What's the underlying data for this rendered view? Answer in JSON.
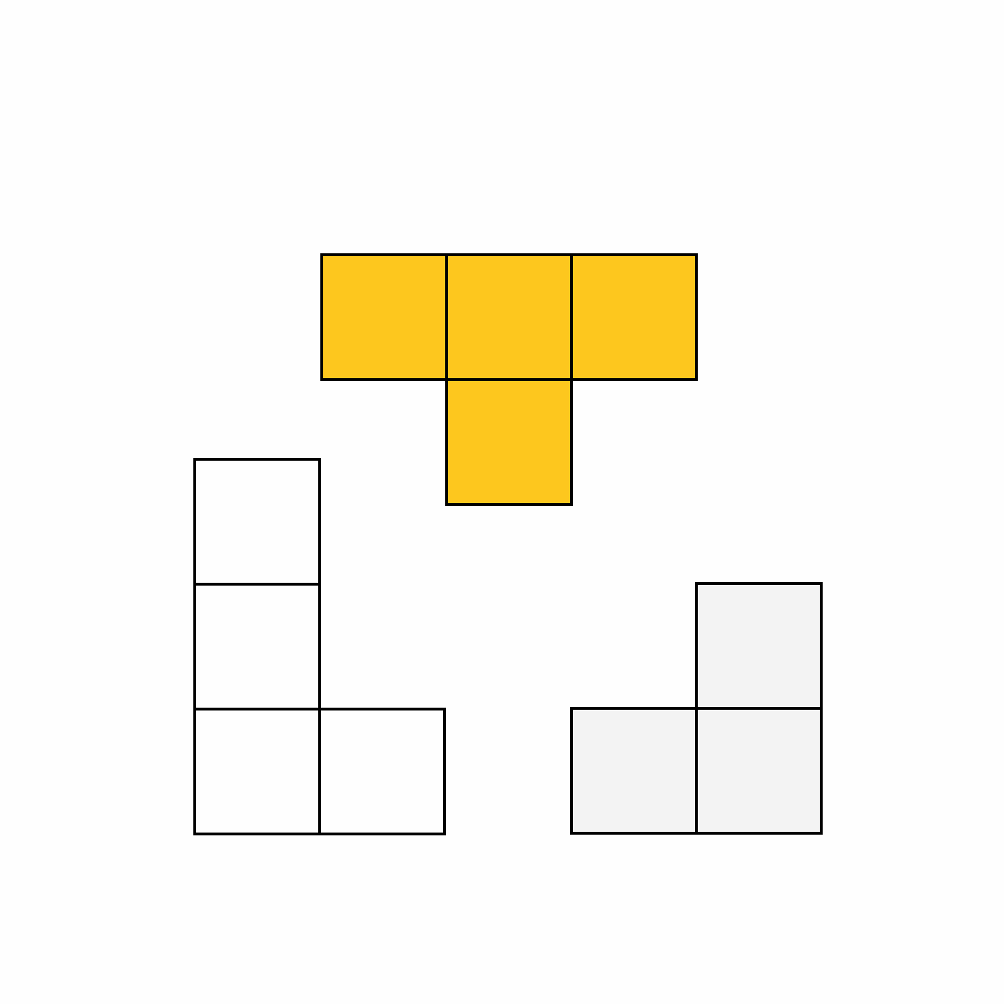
{
  "colors": {
    "background": "#fefefe",
    "outline": "#000000"
  },
  "pieces": [
    {
      "name": "t-tetromino",
      "fill": "#fdc71e",
      "cells": [
        [
          0,
          0
        ],
        [
          1,
          0
        ],
        [
          2,
          0
        ],
        [
          1,
          1
        ]
      ]
    },
    {
      "name": "l-tetromino",
      "fill": "#fefefe",
      "cells": [
        [
          0,
          0
        ],
        [
          0,
          1
        ],
        [
          0,
          2
        ],
        [
          1,
          2
        ]
      ]
    },
    {
      "name": "l-tromino",
      "fill": "#f3f3f3",
      "cells": [
        [
          1,
          0
        ],
        [
          0,
          1
        ],
        [
          1,
          1
        ]
      ]
    }
  ]
}
